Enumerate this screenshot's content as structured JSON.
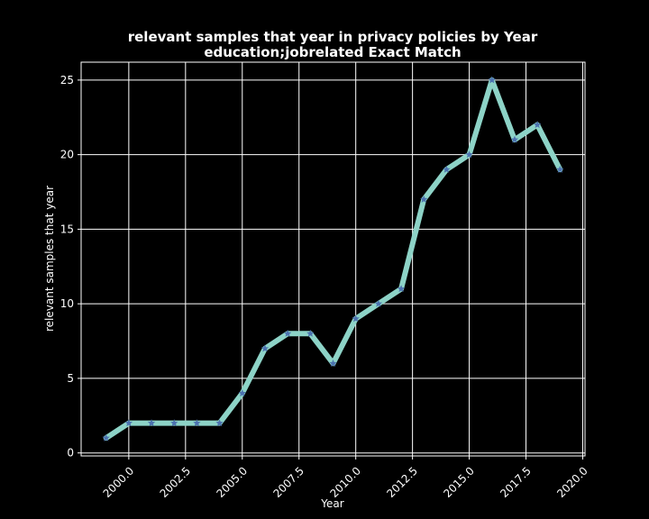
{
  "chart_data": {
    "type": "line",
    "title": "relevant samples that year in privacy policies by Year",
    "subtitle": "education;jobrelated Exact Match",
    "xlabel": "Year",
    "ylabel": "relevant samples that year",
    "x": [
      1999,
      2000,
      2001,
      2002,
      2003,
      2004,
      2005,
      2006,
      2007,
      2008,
      2009,
      2010,
      2011,
      2012,
      2013,
      2014,
      2015,
      2016,
      2017,
      2018,
      2019
    ],
    "values": [
      1,
      2,
      2,
      2,
      2,
      2,
      4,
      7,
      8,
      8,
      6,
      9,
      10,
      11,
      17,
      19,
      20,
      25,
      21,
      22,
      19
    ],
    "xlim": [
      1997.9,
      2020.1
    ],
    "ylim": [
      -0.2,
      26.2
    ],
    "x_ticks": [
      2000.0,
      2002.5,
      2005.0,
      2007.5,
      2010.0,
      2012.5,
      2015.0,
      2017.5,
      2020.0
    ],
    "x_tick_labels": [
      "2000.0",
      "2002.5",
      "2005.0",
      "2007.5",
      "2010.0",
      "2012.5",
      "2015.0",
      "2017.5",
      "2020.0"
    ],
    "y_ticks": [
      0,
      5,
      10,
      15,
      20,
      25
    ],
    "y_tick_labels": [
      "0",
      "5",
      "10",
      "15",
      "20",
      "25"
    ],
    "grid": true,
    "colors": {
      "background": "#000000",
      "line": "#8dd3c7",
      "marker": "#4c72b0",
      "grid": "#ffffff",
      "text": "#ffffff"
    }
  }
}
